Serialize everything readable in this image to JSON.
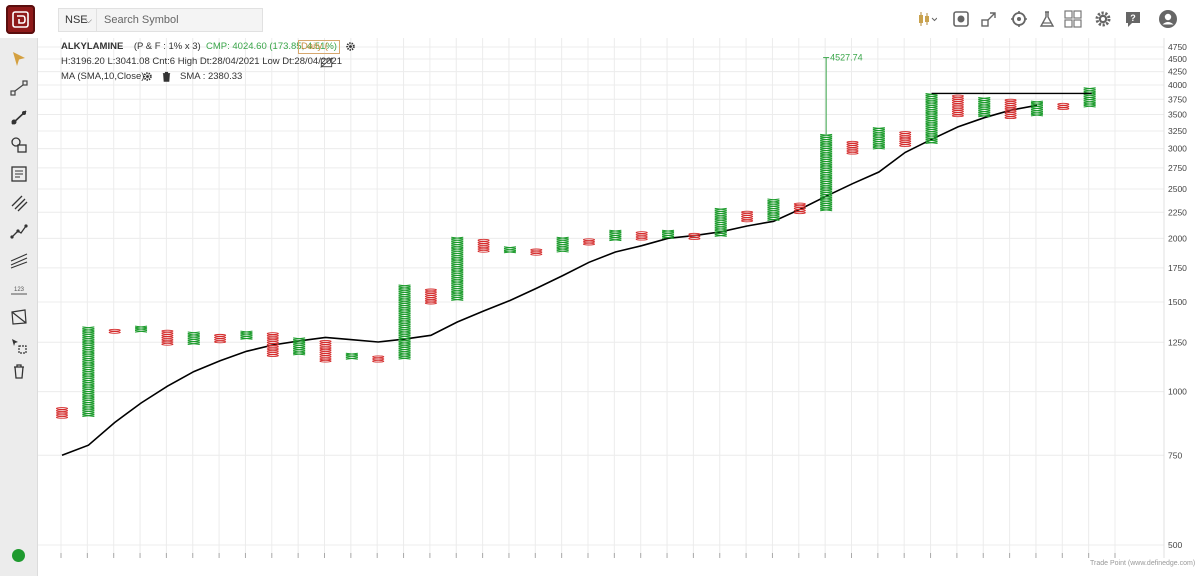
{
  "topbar": {
    "exchange": "NSE",
    "search_placeholder": "Search Symbol",
    "icons": [
      "candlestick-icon",
      "screenshot-icon",
      "expand-icon",
      "scan-icon",
      "lab-icon",
      "layout-grid-icon",
      "settings-icon",
      "help-icon",
      "account-icon"
    ]
  },
  "legend": {
    "symbol": "ALKYLAMINE",
    "params": "(P & F : 1% x 3)",
    "cmp": "CMP: 4024.60 (173.85, 4.51%)",
    "timeframe": "Daily (",
    "ohlc": "H:3196.20 L:3041.08 Cnt:6 High Dt:28/04/2021 Low Dt:28/04/2021",
    "indicator": "MA (SMA,10,Close)",
    "indicator_value": "SMA : 2380.33"
  },
  "colors": {
    "x_column": "#1a9a2a",
    "o_column": "#d42a2a",
    "sma_line": "#000000",
    "gap_line": "#3aa64a",
    "logo": "#8e1a1a",
    "status": "#1f9a2f"
  },
  "chart_data": {
    "type": "point-and-figure",
    "box_size": "1%",
    "reversal": 3,
    "y_scale": "log",
    "ylim": [
      500,
      4750
    ],
    "y_ticks": [
      4750,
      4500,
      4250,
      4000,
      3750,
      3500,
      3250,
      3000,
      2750,
      2500,
      2250,
      2000,
      1750,
      1500,
      1250,
      1000,
      750,
      500
    ],
    "grid": true,
    "columns": [
      {
        "type": "O",
        "high": 930,
        "low": 885
      },
      {
        "type": "X",
        "high": 1340,
        "low": 900
      },
      {
        "type": "O",
        "high": 1325,
        "low": 1305
      },
      {
        "type": "X",
        "high": 1345,
        "low": 1315
      },
      {
        "type": "O",
        "high": 1320,
        "low": 1240
      },
      {
        "type": "X",
        "high": 1310,
        "low": 1240
      },
      {
        "type": "O",
        "high": 1295,
        "low": 1250
      },
      {
        "type": "X",
        "high": 1315,
        "low": 1265
      },
      {
        "type": "O",
        "high": 1305,
        "low": 1180
      },
      {
        "type": "X",
        "high": 1275,
        "low": 1185
      },
      {
        "type": "O",
        "high": 1260,
        "low": 1150
      },
      {
        "type": "X",
        "high": 1190,
        "low": 1165
      },
      {
        "type": "O",
        "high": 1175,
        "low": 1150
      },
      {
        "type": "X",
        "high": 1620,
        "low": 1160
      },
      {
        "type": "O",
        "high": 1590,
        "low": 1490
      },
      {
        "type": "X",
        "high": 2010,
        "low": 1510
      },
      {
        "type": "O",
        "high": 1990,
        "low": 1890
      },
      {
        "type": "X",
        "high": 1925,
        "low": 1885
      },
      {
        "type": "O",
        "high": 1905,
        "low": 1865
      },
      {
        "type": "X",
        "high": 2010,
        "low": 1885
      },
      {
        "type": "O",
        "high": 1995,
        "low": 1945
      },
      {
        "type": "X",
        "high": 2075,
        "low": 1975
      },
      {
        "type": "O",
        "high": 2060,
        "low": 1980
      },
      {
        "type": "X",
        "high": 2075,
        "low": 1995
      },
      {
        "type": "O",
        "high": 2045,
        "low": 1995
      },
      {
        "type": "X",
        "high": 2290,
        "low": 2015
      },
      {
        "type": "O",
        "high": 2260,
        "low": 2155
      },
      {
        "type": "X",
        "high": 2390,
        "low": 2175
      },
      {
        "type": "O",
        "high": 2345,
        "low": 2245
      },
      {
        "type": "X",
        "high": 3200,
        "low": 2280
      },
      {
        "type": "O",
        "high": 3100,
        "low": 2930
      },
      {
        "type": "X",
        "high": 3300,
        "low": 2990
      },
      {
        "type": "O",
        "high": 3240,
        "low": 3040
      },
      {
        "type": "X",
        "high": 3850,
        "low": 3090
      },
      {
        "type": "O",
        "high": 3820,
        "low": 3480
      },
      {
        "type": "X",
        "high": 3780,
        "low": 3470
      },
      {
        "type": "O",
        "high": 3750,
        "low": 3460
      },
      {
        "type": "X",
        "high": 3720,
        "low": 3500
      },
      {
        "type": "O",
        "high": 3680,
        "low": 3590
      },
      {
        "type": "X",
        "high": 3950,
        "low": 3620
      }
    ],
    "sma": [
      {
        "col": 0,
        "value": 750
      },
      {
        "col": 1,
        "value": 785
      },
      {
        "col": 2,
        "value": 870
      },
      {
        "col": 3,
        "value": 950
      },
      {
        "col": 4,
        "value": 1025
      },
      {
        "col": 5,
        "value": 1095
      },
      {
        "col": 6,
        "value": 1150
      },
      {
        "col": 7,
        "value": 1200
      },
      {
        "col": 8,
        "value": 1235
      },
      {
        "col": 9,
        "value": 1258
      },
      {
        "col": 10,
        "value": 1278
      },
      {
        "col": 11,
        "value": 1265
      },
      {
        "col": 12,
        "value": 1252
      },
      {
        "col": 13,
        "value": 1268
      },
      {
        "col": 14,
        "value": 1290
      },
      {
        "col": 15,
        "value": 1370
      },
      {
        "col": 16,
        "value": 1440
      },
      {
        "col": 17,
        "value": 1510
      },
      {
        "col": 18,
        "value": 1595
      },
      {
        "col": 19,
        "value": 1690
      },
      {
        "col": 20,
        "value": 1795
      },
      {
        "col": 21,
        "value": 1880
      },
      {
        "col": 22,
        "value": 1935
      },
      {
        "col": 23,
        "value": 2000
      },
      {
        "col": 24,
        "value": 2025
      },
      {
        "col": 25,
        "value": 2060
      },
      {
        "col": 26,
        "value": 2115
      },
      {
        "col": 27,
        "value": 2160
      },
      {
        "col": 28,
        "value": 2280
      },
      {
        "col": 29,
        "value": 2420
      },
      {
        "col": 30,
        "value": 2560
      },
      {
        "col": 31,
        "value": 2700
      },
      {
        "col": 32,
        "value": 2950
      },
      {
        "col": 33,
        "value": 3130
      },
      {
        "col": 34,
        "value": 3310
      },
      {
        "col": 35,
        "value": 3450
      },
      {
        "col": 36,
        "value": 3570
      },
      {
        "col": 37,
        "value": 3650
      }
    ],
    "annotation": {
      "label": "4527.74",
      "value": 4527.74,
      "from": 3200,
      "col": 29
    },
    "resistance": {
      "value": 3850,
      "from_col": 33,
      "to_col": 39
    }
  },
  "watermark": "Trade Point (www.definedge.com)"
}
